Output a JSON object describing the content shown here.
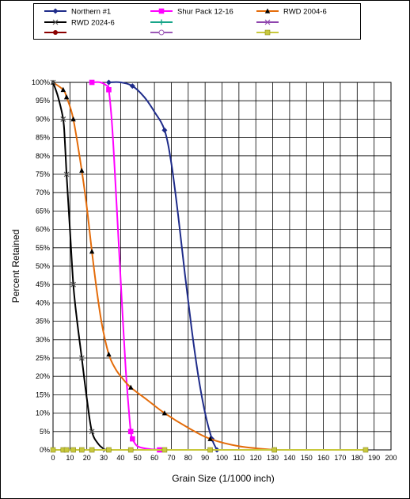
{
  "chart_data": {
    "type": "scatter",
    "title": "",
    "xlabel": "Grain Size (1/1000 inch)",
    "ylabel": "Percent Retained",
    "xlim": [
      0,
      200
    ],
    "ylim": [
      0,
      100
    ],
    "x_ticks": [
      0,
      10,
      20,
      30,
      40,
      50,
      60,
      70,
      80,
      90,
      100,
      110,
      120,
      130,
      140,
      150,
      160,
      170,
      180,
      190,
      200
    ],
    "y_ticks": [
      0,
      5,
      10,
      15,
      20,
      25,
      30,
      35,
      40,
      45,
      50,
      55,
      60,
      65,
      70,
      75,
      80,
      85,
      90,
      95,
      100
    ],
    "y_tick_suffix": "%",
    "grid": true,
    "legend_position": "top",
    "series": [
      {
        "name": "Northern #1",
        "color": "#1f2c8a",
        "marker": "diamond",
        "points": [
          [
            33,
            100
          ],
          [
            47,
            99
          ],
          [
            66,
            87
          ],
          [
            94,
            3
          ],
          [
            97,
            0
          ]
        ],
        "curve": [
          [
            33,
            100
          ],
          [
            40,
            100
          ],
          [
            47,
            99
          ],
          [
            54,
            96
          ],
          [
            60,
            92
          ],
          [
            66,
            87
          ],
          [
            70,
            78
          ],
          [
            74,
            64
          ],
          [
            78,
            48
          ],
          [
            82,
            33
          ],
          [
            86,
            20
          ],
          [
            90,
            10
          ],
          [
            94,
            3
          ],
          [
            97,
            0
          ]
        ]
      },
      {
        "name": "Shur Pack 12-16",
        "color": "#ff00ff",
        "marker": "square",
        "points": [
          [
            23,
            100
          ],
          [
            33,
            98
          ],
          [
            46,
            5
          ],
          [
            47,
            3
          ],
          [
            63,
            0
          ]
        ],
        "curve": [
          [
            23,
            100
          ],
          [
            28,
            100
          ],
          [
            32,
            99
          ],
          [
            33,
            98
          ],
          [
            35,
            88
          ],
          [
            37,
            72
          ],
          [
            39,
            55
          ],
          [
            41,
            38
          ],
          [
            43,
            22
          ],
          [
            45,
            10
          ],
          [
            46,
            5
          ],
          [
            47,
            3
          ],
          [
            50,
            1
          ],
          [
            56,
            0.3
          ],
          [
            63,
            0
          ]
        ]
      },
      {
        "name": "RWD 2004-6",
        "color": "#e46c0a",
        "marker": "triangle",
        "points": [
          [
            0,
            100
          ],
          [
            6,
            98
          ],
          [
            8,
            96
          ],
          [
            12,
            90
          ],
          [
            17,
            76
          ],
          [
            23,
            54
          ],
          [
            33,
            26
          ],
          [
            46,
            17
          ],
          [
            66,
            10
          ],
          [
            93,
            3
          ],
          [
            131,
            0
          ]
        ],
        "curve": [
          [
            0,
            100
          ],
          [
            6,
            98
          ],
          [
            8,
            96
          ],
          [
            12,
            90
          ],
          [
            17,
            76
          ],
          [
            20,
            66
          ],
          [
            23,
            54
          ],
          [
            26,
            43
          ],
          [
            29,
            34
          ],
          [
            33,
            26
          ],
          [
            37,
            22
          ],
          [
            41,
            19.5
          ],
          [
            46,
            17
          ],
          [
            56,
            13.5
          ],
          [
            66,
            10
          ],
          [
            80,
            6
          ],
          [
            93,
            3
          ],
          [
            110,
            1
          ],
          [
            131,
            0
          ]
        ]
      },
      {
        "name": "RWD 2024-6",
        "color": "#000000",
        "marker": "x",
        "points": [
          [
            0,
            100
          ],
          [
            6,
            90
          ],
          [
            8,
            75
          ],
          [
            12,
            45
          ],
          [
            17,
            25
          ],
          [
            23,
            5
          ],
          [
            31,
            0
          ]
        ],
        "curve": [
          [
            0,
            100
          ],
          [
            3,
            96
          ],
          [
            6,
            90
          ],
          [
            7,
            84
          ],
          [
            8,
            75
          ],
          [
            10,
            60
          ],
          [
            12,
            45
          ],
          [
            14,
            36
          ],
          [
            17,
            25
          ],
          [
            20,
            14
          ],
          [
            23,
            5
          ],
          [
            27,
            1.5
          ],
          [
            31,
            0
          ]
        ]
      },
      {
        "name": "",
        "color": "#17a589",
        "marker": "plus",
        "points": [],
        "curve": []
      },
      {
        "name": "",
        "color": "#8e44ad",
        "marker": "x",
        "points": [],
        "curve": []
      },
      {
        "name": "",
        "color": "#8b0000",
        "marker": "circle",
        "points": [],
        "curve": []
      },
      {
        "name": "",
        "color": "#9b59b6",
        "marker": "open-circle",
        "points": [],
        "curve": []
      },
      {
        "name": "",
        "color": "#c8c83c",
        "marker": "square",
        "points": [
          [
            0,
            0
          ],
          [
            6,
            0
          ],
          [
            8,
            0
          ],
          [
            12,
            0
          ],
          [
            17,
            0
          ],
          [
            23,
            0
          ],
          [
            33,
            0
          ],
          [
            46,
            0
          ],
          [
            66,
            0
          ],
          [
            93,
            0
          ],
          [
            131,
            0
          ],
          [
            185,
            0
          ]
        ],
        "curve": [
          [
            0,
            0
          ],
          [
            185,
            0
          ]
        ]
      }
    ]
  }
}
